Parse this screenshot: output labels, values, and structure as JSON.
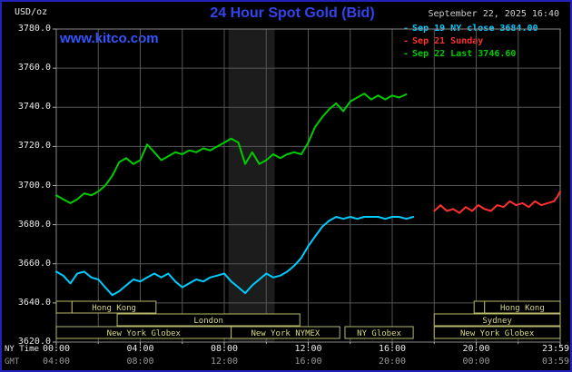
{
  "meta": {
    "unit_label": "USD/oz",
    "title": "24 Hour Spot Gold (Bid)",
    "datetime": "September 22, 2025 16:40",
    "watermark": "www.kitco.com",
    "ny_time_label": "NY Time",
    "gmt_label": "GMT"
  },
  "legend": [
    {
      "label": "Sep 19 NY close 3684.00",
      "color": "#00ccff"
    },
    {
      "label": "Sep 21 Sunday",
      "color": "#ff3030"
    },
    {
      "label": "Sep 22 Last 3746.60",
      "color": "#00cc00"
    }
  ],
  "colors": {
    "background": "#000000",
    "border": "#2222bb",
    "title": "#3344ee",
    "watermark": "#3355ff",
    "grid": "#555555",
    "frame": "#888888",
    "tick": "#aaaaaa",
    "band": "#1c1c1c",
    "session_border": "#b8b86a",
    "session_text": "#d8d87e",
    "axis_text": "#e8e8e8",
    "gmt_text": "#999999"
  },
  "chart_data": {
    "type": "line",
    "title": "24 Hour Spot Gold (Bid)",
    "ylabel": "USD/oz",
    "ylim": [
      3620,
      3780
    ],
    "ytick_step": 20,
    "xlim_hours": [
      0,
      24
    ],
    "xtick_hours": [
      0,
      4,
      8,
      12,
      16,
      20,
      24
    ],
    "xticks_ny": [
      "00:00",
      "04:00",
      "08:00",
      "12:00",
      "16:00",
      "20:00",
      "23:59"
    ],
    "xticks_gmt": [
      "04:00",
      "08:00",
      "12:00",
      "16:00",
      "20:00",
      "00:00",
      "03:59"
    ],
    "grid": true,
    "legend_position": "top-right",
    "band": {
      "start_hour": 8.2,
      "end_hour": 10.4,
      "color": "#1c1c1c"
    },
    "series": [
      {
        "name": "Sep 19 NY close 3684.00",
        "color": "#00ccff",
        "x": [
          0,
          0.33,
          0.67,
          1,
          1.33,
          1.67,
          2,
          2.33,
          2.67,
          3,
          3.33,
          3.67,
          4,
          4.33,
          4.67,
          5,
          5.33,
          5.67,
          6,
          6.33,
          6.67,
          7,
          7.33,
          7.67,
          8,
          8.33,
          8.67,
          9,
          9.33,
          9.67,
          10,
          10.33,
          10.67,
          11,
          11.33,
          11.67,
          12,
          12.33,
          12.67,
          13,
          13.33,
          13.67,
          14,
          14.33,
          14.67,
          15,
          15.33,
          15.67,
          16,
          16.33,
          16.67,
          17
        ],
        "y": [
          3656,
          3654,
          3650,
          3655,
          3656,
          3653,
          3652,
          3648,
          3644,
          3646,
          3649,
          3652,
          3651,
          3653,
          3655,
          3653,
          3655,
          3651,
          3648,
          3650,
          3652,
          3651,
          3653,
          3654,
          3655,
          3651,
          3648,
          3645,
          3649,
          3652,
          3655,
          3653,
          3654,
          3656,
          3659,
          3663,
          3669,
          3674,
          3679,
          3682,
          3684,
          3683,
          3684,
          3683,
          3684,
          3684,
          3684,
          3683,
          3684,
          3684,
          3683,
          3684
        ]
      },
      {
        "name": "Sep 21 Sunday",
        "color": "#ff3030",
        "x": [
          18,
          18.3,
          18.6,
          18.9,
          19.2,
          19.5,
          19.8,
          20.1,
          20.4,
          20.7,
          21,
          21.3,
          21.6,
          21.9,
          22.2,
          22.5,
          22.8,
          23.1,
          23.4,
          23.7,
          23.85,
          24
        ],
        "y": [
          3687,
          3690,
          3687,
          3688,
          3686,
          3689,
          3687,
          3690,
          3688,
          3687,
          3690,
          3689,
          3692,
          3690,
          3691,
          3689,
          3692,
          3690,
          3691,
          3692,
          3694,
          3697
        ]
      },
      {
        "name": "Sep 22 Last 3746.60",
        "color": "#00cc00",
        "x": [
          0,
          0.33,
          0.67,
          1,
          1.33,
          1.67,
          2,
          2.33,
          2.67,
          3,
          3.33,
          3.67,
          4,
          4.33,
          4.67,
          5,
          5.33,
          5.67,
          6,
          6.33,
          6.67,
          7,
          7.33,
          7.67,
          8,
          8.33,
          8.67,
          9,
          9.33,
          9.67,
          10,
          10.33,
          10.67,
          11,
          11.33,
          11.67,
          12,
          12.33,
          12.67,
          13,
          13.33,
          13.67,
          14,
          14.33,
          14.67,
          15,
          15.33,
          15.67,
          16,
          16.33,
          16.67
        ],
        "y": [
          3695,
          3693,
          3691,
          3693,
          3696,
          3695,
          3697,
          3700,
          3705,
          3712,
          3714,
          3711,
          3713,
          3721,
          3717,
          3713,
          3715,
          3717,
          3716,
          3718,
          3717,
          3719,
          3718,
          3720,
          3722,
          3724,
          3722,
          3711,
          3717,
          3711,
          3713,
          3716,
          3714,
          3716,
          3717,
          3716,
          3722,
          3730,
          3735,
          3739,
          3742,
          3738,
          3743,
          3745,
          3747,
          3744,
          3746,
          3744,
          3746,
          3745,
          3746.6
        ]
      }
    ],
    "sessions": [
      {
        "row": 0,
        "start": 0,
        "end": 0.75,
        "label": ""
      },
      {
        "row": 0,
        "start": 0.75,
        "end": 4.75,
        "label": "Hong Kong"
      },
      {
        "row": 0,
        "start": 19.9,
        "end": 20.4,
        "label": ""
      },
      {
        "row": 0,
        "start": 20.4,
        "end": 24,
        "label": "Hong Kong"
      },
      {
        "row": 1,
        "start": 2.9,
        "end": 11.6,
        "label": "London"
      },
      {
        "row": 1,
        "start": 18.0,
        "end": 24,
        "label": "Sydney"
      },
      {
        "row": 2,
        "start": 0,
        "end": 8.33,
        "label": "New York Globex"
      },
      {
        "row": 2,
        "start": 8.33,
        "end": 13.5,
        "label": "New York NYMEX"
      },
      {
        "row": 2,
        "start": 13.75,
        "end": 17.0,
        "label": "NY Globex"
      },
      {
        "row": 2,
        "start": 18.0,
        "end": 24,
        "label": "New York Globex"
      }
    ]
  }
}
